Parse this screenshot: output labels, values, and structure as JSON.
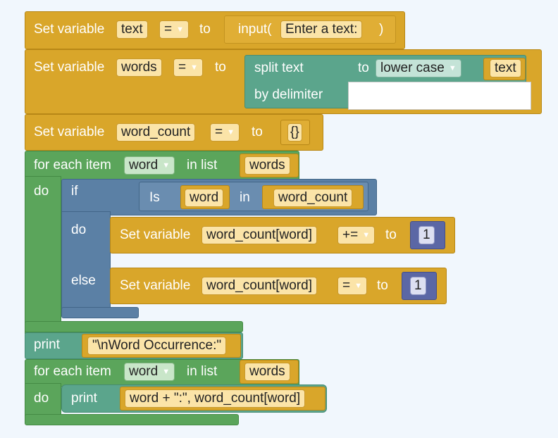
{
  "blocks": {
    "b1": {
      "prefix": "Set variable",
      "var": "text",
      "op": "=",
      "to": "to",
      "func": "input(",
      "arg": "Enter a text:",
      "close": ")"
    },
    "b2": {
      "prefix": "Set variable",
      "var": "words",
      "op": "=",
      "to": "to",
      "split": "split text",
      "to2": "to",
      "case": "lower case",
      "arg": "text",
      "delim": "by delimiter"
    },
    "b3": {
      "prefix": "Set variable",
      "var": "word_count",
      "op": "=",
      "to": "to",
      "value": "{}"
    },
    "loop1": {
      "head": "for each item",
      "item": "word",
      "in_list": "in list",
      "list": "words",
      "do": "do"
    },
    "if1": {
      "if": "if",
      "is": "Is",
      "a": "word",
      "in": "in",
      "b": "word_count",
      "do": "do",
      "else": "else"
    },
    "set_inc": {
      "prefix": "Set variable",
      "var": "word_count[word]",
      "op": "+=",
      "to": "to",
      "value": "1"
    },
    "set_init": {
      "prefix": "Set variable",
      "var": "word_count[word]",
      "op": "=",
      "to": "to",
      "value": "1"
    },
    "print1": {
      "label": "print",
      "text": "\"\\nWord Occurrence:\""
    },
    "loop2": {
      "head": "for each item",
      "item": "word",
      "in_list": "in list",
      "list": "words",
      "do": "do"
    },
    "print2": {
      "label": "print",
      "text": "word + \":\", word_count[word]"
    }
  },
  "colors": {
    "gold": "#d9a62a",
    "green": "#5ba55b",
    "blue": "#5b80a5",
    "teal": "#5ba58c",
    "indigo": "#5b67a5"
  }
}
